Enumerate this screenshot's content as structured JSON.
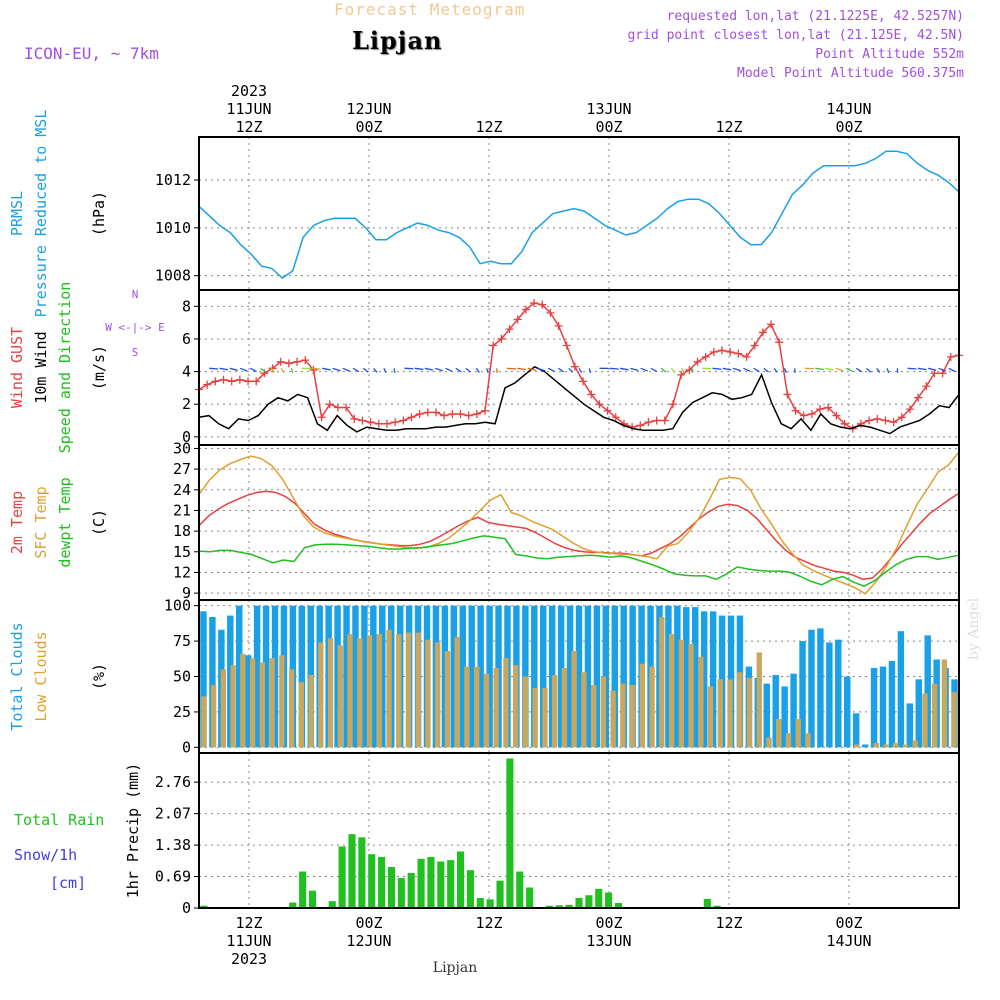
{
  "header": {
    "forecast_title": "Forecast Meteogram",
    "location": "Lipjan",
    "model": "ICON-EU, ~ 7km",
    "requested": "requested lon,lat (21.1225E, 42.5257N)",
    "grid_point": "grid point closest lon,lat (21.125E, 42.5N)",
    "point_altitude": "Point Altitude 552m",
    "model_altitude": "Model Point Altitude 560.375m",
    "footer_location": "Lipjan",
    "watermark": "by Angel"
  },
  "colors": {
    "pressure": "#1aa0e6",
    "gust": "#e84040",
    "wind": "#000000",
    "temp2m": "#e84040",
    "sfc": "#e0a030",
    "dewpt": "#20c020",
    "total_clouds": "#1aa0e6",
    "low_clouds": "#c8a860",
    "rain": "#20c020",
    "snow": "#4040e0",
    "label_purple": "#a050e0"
  },
  "chart_data": {
    "type": "meteogram",
    "x_unit": "hours from 2023-06-11 07Z",
    "time_axis_top": [
      {
        "hour": 5,
        "lines": [
          "2023",
          "11JUN",
          "12Z"
        ]
      },
      {
        "hour": 17,
        "lines": [
          "12JUN",
          "00Z"
        ]
      },
      {
        "hour": 29,
        "lines": [
          "12Z"
        ]
      },
      {
        "hour": 41,
        "lines": [
          "13JUN",
          "00Z"
        ]
      },
      {
        "hour": 53,
        "lines": [
          "12Z"
        ]
      },
      {
        "hour": 65,
        "lines": [
          "14JUN",
          "00Z"
        ]
      }
    ],
    "time_axis_bottom": [
      {
        "hour": 5,
        "lines": [
          "12Z",
          "11JUN",
          "2023"
        ]
      },
      {
        "hour": 17,
        "lines": [
          "00Z",
          "12JUN"
        ]
      },
      {
        "hour": 29,
        "lines": [
          "12Z"
        ]
      },
      {
        "hour": 41,
        "lines": [
          "00Z",
          "13JUN"
        ]
      },
      {
        "hour": 53,
        "lines": [
          "12Z"
        ]
      },
      {
        "hour": 65,
        "lines": [
          "00Z",
          "14JUN"
        ]
      }
    ],
    "x_range": [
      0,
      76
    ],
    "panels": [
      {
        "id": "pressure",
        "ylabel_lines": [
          "PRMSL",
          "Pressure Reduced to MSL"
        ],
        "unit": "(hPa)",
        "ylim": [
          1007.4,
          1013.8
        ],
        "yticks": [
          1008,
          1010,
          1012
        ],
        "series": [
          {
            "key": "prmsl",
            "color": "#1aa0e6",
            "values": [
              1010.9,
              1010.5,
              1010.1,
              1009.8,
              1009.3,
              1008.9,
              1008.4,
              1008.3,
              1007.9,
              1008.2,
              1009.6,
              1010.1,
              1010.3,
              1010.4,
              1010.4,
              1010.4,
              1010.0,
              1009.5,
              1009.5,
              1009.8,
              1010.0,
              1010.2,
              1010.1,
              1009.9,
              1009.8,
              1009.6,
              1009.2,
              1008.5,
              1008.6,
              1008.5,
              1008.5,
              1009.0,
              1009.8,
              1010.2,
              1010.6,
              1010.7,
              1010.8,
              1010.7,
              1010.4,
              1010.1,
              1009.9,
              1009.7,
              1009.8,
              1010.1,
              1010.4,
              1010.8,
              1011.1,
              1011.2,
              1011.2,
              1011.0,
              1010.6,
              1010.1,
              1009.6,
              1009.3,
              1009.3,
              1009.8,
              1010.6,
              1011.4,
              1011.8,
              1012.3,
              1012.6,
              1012.6,
              1012.6,
              1012.6,
              1012.7,
              1012.9,
              1013.2,
              1013.2,
              1013.1,
              1012.7,
              1012.4,
              1012.2,
              1011.9,
              1011.5
            ]
          }
        ]
      },
      {
        "id": "wind",
        "ylabel_lines": [
          "Wind GUST",
          "10m Wind",
          "Speed and Direction"
        ],
        "ylabel_colors": [
          "#e84040",
          "#000000",
          "#20c020"
        ],
        "unit": "(m/s)",
        "compass": [
          "N",
          "W <-|-> E",
          "S"
        ],
        "ylim": [
          -0.5,
          9.0
        ],
        "yticks": [
          0,
          2,
          4,
          6,
          8
        ],
        "series": [
          {
            "key": "gust",
            "color": "#e84040",
            "marker": "+",
            "values": [
              2.9,
              3.2,
              3.4,
              3.5,
              3.4,
              3.5,
              3.4,
              3.4,
              3.9,
              4.2,
              4.6,
              4.5,
              4.6,
              4.7,
              4.1,
              1.2,
              2.0,
              1.8,
              1.8,
              1.1,
              1.0,
              0.9,
              0.8,
              0.8,
              0.9,
              1.0,
              1.2,
              1.4,
              1.5,
              1.5,
              1.3,
              1.4,
              1.4,
              1.3,
              1.4,
              1.6,
              5.6,
              6.0,
              6.6,
              7.2,
              7.8,
              8.2,
              8.1,
              7.6,
              6.8,
              5.6,
              4.3,
              3.4,
              2.6,
              2.0,
              1.6,
              1.2,
              0.8,
              0.6,
              0.7,
              0.9,
              1.0,
              1.0,
              2.0,
              3.8,
              4.1,
              4.6,
              4.9,
              5.2,
              5.3,
              5.2,
              5.1,
              4.9,
              5.6,
              6.4,
              6.9,
              5.8,
              2.6,
              1.6,
              1.3,
              1.4,
              1.7,
              1.8,
              1.3,
              0.8,
              0.5,
              0.8,
              1.0,
              1.1,
              1.0,
              0.9,
              1.2,
              1.7,
              2.4,
              3.1,
              3.9,
              3.9,
              4.9,
              5.0
            ]
          },
          {
            "key": "wind10m",
            "color": "#000000",
            "values": [
              1.2,
              1.3,
              0.8,
              0.5,
              1.1,
              1.0,
              1.3,
              2.0,
              2.4,
              2.2,
              2.6,
              2.4,
              0.8,
              0.4,
              1.3,
              0.7,
              0.3,
              0.6,
              0.5,
              0.4,
              0.4,
              0.5,
              0.5,
              0.5,
              0.6,
              0.6,
              0.7,
              0.8,
              0.8,
              0.9,
              0.8,
              3.0,
              3.3,
              3.8,
              4.3,
              4.0,
              3.5,
              3.0,
              2.5,
              2.0,
              1.6,
              1.2,
              1.0,
              0.7,
              0.5,
              0.4,
              0.4,
              0.4,
              0.5,
              1.5,
              2.1,
              2.4,
              2.7,
              2.6,
              2.3,
              2.4,
              2.6,
              3.8,
              2.1,
              0.8,
              0.5,
              1.1,
              0.4,
              1.4,
              0.8,
              0.6,
              0.5,
              0.7,
              0.6,
              0.4,
              0.2,
              0.6,
              0.8,
              1.0,
              1.4,
              1.9,
              1.8,
              2.6
            ]
          }
        ]
      },
      {
        "id": "temperature",
        "ylabel_lines": [
          "2m Temp",
          "SFC Temp",
          "dewpt Temp"
        ],
        "ylabel_colors": [
          "#e84040",
          "#e0a030",
          "#20c020"
        ],
        "unit": "(C)",
        "ylim": [
          8.0,
          30.5
        ],
        "yticks": [
          9,
          12,
          15,
          18,
          21,
          24,
          27,
          30
        ],
        "series": [
          {
            "key": "t2m",
            "color": "#e84040",
            "values": [
              18.8,
              20.2,
              21.2,
              22.0,
              22.6,
              23.2,
              23.6,
              23.8,
              23.6,
              23.0,
              22.0,
              20.5,
              19.0,
              18.2,
              17.6,
              17.2,
              16.8,
              16.5,
              16.3,
              16.1,
              16.0,
              15.9,
              15.9,
              16.1,
              16.5,
              17.2,
              18.0,
              18.8,
              19.5,
              20.0,
              19.3,
              19.0,
              18.8,
              18.6,
              18.4,
              17.8,
              17.0,
              16.2,
              15.6,
              15.2,
              15.0,
              14.9,
              14.9,
              14.8,
              14.8,
              14.6,
              14.4,
              14.8,
              15.5,
              16.2,
              17.2,
              18.5,
              19.8,
              20.8,
              21.6,
              21.9,
              21.7,
              21.0,
              19.8,
              18.2,
              16.6,
              15.2,
              14.2,
              13.6,
              13.0,
              12.6,
              12.2,
              12.0,
              11.6,
              11.0,
              11.2,
              12.5,
              14.2,
              16.0,
              17.6,
              19.2,
              20.6,
              21.6,
              22.6,
              23.5
            ]
          },
          {
            "key": "sfc",
            "color": "#e0a030",
            "values": [
              23.3,
              25.4,
              26.9,
              27.8,
              28.4,
              28.9,
              28.5,
              27.5,
              25.6,
              23.0,
              20.3,
              18.6,
              17.8,
              17.3,
              17.0,
              16.7,
              16.4,
              16.2,
              16.0,
              15.8,
              15.6,
              15.5,
              15.7,
              16.2,
              17.0,
              18.2,
              19.5,
              21.0,
              22.5,
              23.3,
              20.7,
              20.2,
              19.4,
              18.8,
              18.2,
              17.2,
              16.2,
              15.4,
              15.0,
              14.8,
              14.7,
              14.6,
              14.5,
              14.3,
              14.0,
              15.8,
              16.2,
              17.8,
              19.8,
              22.5,
              25.5,
              25.8,
              25.6,
              23.9,
              21.2,
              19.0,
              16.6,
              14.7,
              13.1,
              12.3,
              11.6,
              11.0,
              10.4,
              9.8,
              8.9,
              10.6,
              12.8,
              15.5,
              18.8,
              22.0,
              24.2,
              26.6,
              27.6,
              29.5
            ]
          },
          {
            "key": "dewpt",
            "color": "#20c020",
            "values": [
              15.1,
              15.0,
              15.2,
              15.2,
              14.9,
              14.6,
              14.0,
              13.4,
              13.8,
              13.6,
              15.6,
              16.0,
              16.1,
              16.1,
              16.0,
              15.9,
              15.8,
              15.6,
              15.4,
              15.4,
              15.5,
              15.6,
              15.8,
              16.0,
              16.2,
              16.6,
              17.0,
              17.3,
              17.1,
              16.9,
              14.6,
              14.4,
              14.1,
              14.0,
              14.2,
              14.3,
              14.4,
              14.5,
              14.4,
              14.2,
              14.4,
              14.1,
              13.6,
              13.1,
              12.5,
              11.8,
              11.6,
              11.5,
              11.5,
              11.0,
              11.8,
              12.8,
              12.5,
              12.3,
              12.2,
              12.2,
              12.0,
              11.4,
              10.7,
              10.2,
              11.0,
              11.4,
              10.6,
              10.0,
              10.8,
              12.0,
              13.1,
              13.9,
              14.3,
              14.3,
              13.9,
              14.2,
              14.5
            ]
          }
        ]
      },
      {
        "id": "clouds",
        "ylabel_lines": [
          "Total Clouds",
          "Low Clouds"
        ],
        "ylabel_colors": [
          "#1aa0e6",
          "#e0a030"
        ],
        "unit": "(%)",
        "ylim": [
          -4,
          104
        ],
        "yticks": [
          0,
          25,
          50,
          75,
          100
        ],
        "series": [
          {
            "key": "total",
            "color": "#1aa0e6",
            "type": "bar",
            "values": [
              96,
              92,
              83,
              93,
              100,
              65,
              100,
              100,
              100,
              100,
              100,
              100,
              100,
              100,
              100,
              100,
              100,
              100,
              100,
              100,
              100,
              100,
              100,
              100,
              100,
              100,
              100,
              100,
              100,
              100,
              100,
              100,
              100,
              100,
              100,
              100,
              100,
              100,
              100,
              100,
              100,
              100,
              100,
              100,
              100,
              100,
              100,
              100,
              100,
              100,
              100,
              100,
              100,
              100,
              99,
              99,
              96,
              96,
              93,
              93,
              93,
              57,
              49,
              45,
              51,
              43,
              52,
              75,
              83,
              84,
              74,
              76,
              50,
              24,
              2,
              56,
              57,
              61,
              82,
              31,
              48,
              79,
              62,
              56,
              48
            ]
          },
          {
            "key": "low",
            "color": "#c8a860",
            "type": "bar",
            "values": [
              36,
              44,
              55,
              58,
              66,
              63,
              60,
              63,
              65,
              55,
              46,
              51,
              74,
              77,
              72,
              80,
              77,
              79,
              80,
              83,
              80,
              81,
              81,
              76,
              74,
              68,
              78,
              57,
              57,
              52,
              56,
              63,
              58,
              50,
              42,
              42,
              51,
              56,
              68,
              53,
              44,
              50,
              40,
              45,
              44,
              59,
              57,
              92,
              80,
              76,
              73,
              64,
              43,
              48,
              48,
              53,
              49,
              67,
              7,
              20,
              10,
              20,
              10,
              0,
              0,
              0,
              0,
              2,
              0,
              3,
              2,
              3,
              2,
              5,
              38,
              45,
              62,
              39
            ]
          }
        ]
      },
      {
        "id": "precip",
        "ylabel_lines": [
          "1hr Precip (mm)"
        ],
        "side_labels": [
          {
            "text": "Total   Rain",
            "color": "#20c020"
          },
          {
            "text": "Snow/1h",
            "color": "#4040e0"
          },
          {
            "text": "[cm]",
            "color": "#4040e0"
          }
        ],
        "ylim": [
          0,
          3.4
        ],
        "yticks": [
          0,
          0.69,
          1.38,
          2.07,
          2.76
        ],
        "ytick_labels": [
          "0",
          "0.69",
          "1.38",
          "2.07",
          "2.76"
        ],
        "series": [
          {
            "key": "rain",
            "color": "#20c020",
            "type": "bar",
            "values": [
              0.05,
              0,
              0,
              0,
              0,
              0,
              0,
              0,
              0,
              0.12,
              0.8,
              0.38,
              0,
              0.15,
              1.35,
              1.62,
              1.55,
              1.18,
              1.12,
              0.9,
              0.66,
              0.77,
              1.08,
              1.12,
              1.02,
              1.05,
              1.24,
              0.83,
              0.22,
              0.19,
              0.6,
              3.28,
              0.8,
              0.45,
              0,
              0.05,
              0.06,
              0.07,
              0.22,
              0.28,
              0.42,
              0.34,
              0.11,
              0,
              0,
              0,
              0,
              0,
              0,
              0,
              0,
              0.2,
              0.05,
              0,
              0,
              0,
              0,
              0,
              0,
              0,
              0,
              0,
              0,
              0,
              0,
              0,
              0,
              0,
              0,
              0,
              0,
              0,
              0,
              0,
              0,
              0,
              0
            ]
          }
        ]
      }
    ]
  }
}
